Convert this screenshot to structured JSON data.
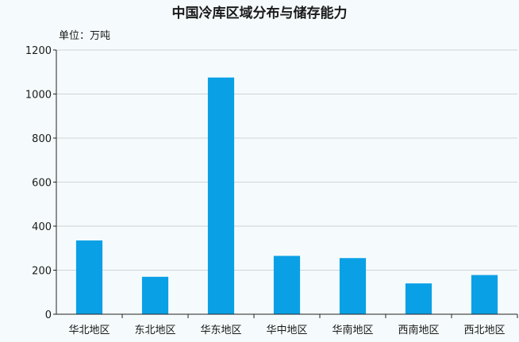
{
  "chart_data": {
    "type": "bar",
    "title": "中国冷库区域分布与储存能力",
    "unit_label": "单位：万吨",
    "categories": [
      "华北地区",
      "东北地区",
      "华东地区",
      "华中地区",
      "华南地区",
      "西南地区",
      "西北地区"
    ],
    "values": [
      335,
      170,
      1075,
      265,
      255,
      140,
      178
    ],
    "ylim": [
      0,
      1200
    ],
    "yticks": [
      0,
      200,
      400,
      600,
      800,
      1000,
      1200
    ],
    "grid": true,
    "bar_color": "#0aa0e6"
  }
}
